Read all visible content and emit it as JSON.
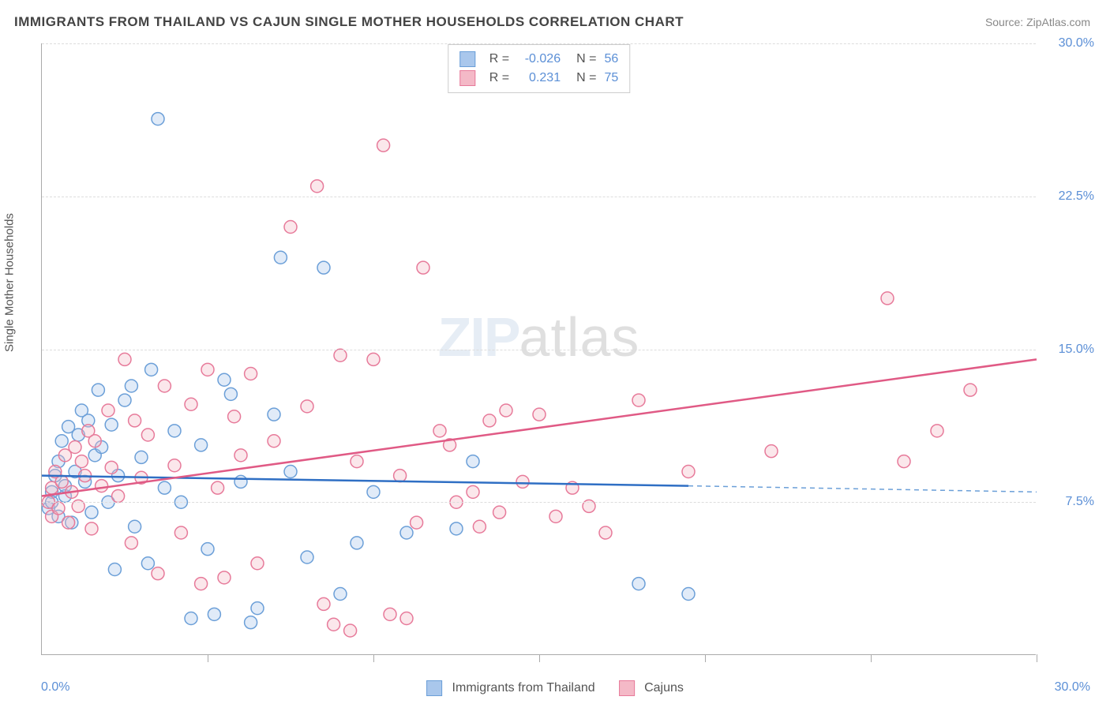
{
  "title": "IMMIGRANTS FROM THAILAND VS CAJUN SINGLE MOTHER HOUSEHOLDS CORRELATION CHART",
  "source_label": "Source: ZipAtlas.com",
  "y_axis_label": "Single Mother Households",
  "watermark": {
    "bold": "ZIP",
    "light": "atlas"
  },
  "chart": {
    "type": "scatter",
    "xlim": [
      0,
      30
    ],
    "ylim": [
      0,
      30
    ],
    "x_min_label": "0.0%",
    "x_max_label": "30.0%",
    "y_ticks": [
      7.5,
      15.0,
      22.5,
      30.0
    ],
    "y_tick_labels": [
      "7.5%",
      "15.0%",
      "22.5%",
      "30.0%"
    ],
    "x_ticks": [
      5,
      10,
      15,
      20,
      25,
      30
    ],
    "background_color": "#ffffff",
    "grid_color": "#dddddd",
    "axis_color": "#aaaaaa",
    "tick_label_color": "#5b8fd6",
    "marker_radius": 8,
    "marker_stroke_width": 1.5,
    "marker_fill_opacity": 0.35,
    "series": [
      {
        "name": "Immigrants from Thailand",
        "color_fill": "#a9c7ec",
        "color_stroke": "#6b9fd8",
        "r_value": "-0.026",
        "n_value": "56",
        "trend": {
          "solid": {
            "x1": 0,
            "y1": 8.8,
            "x2": 19.5,
            "y2": 8.3,
            "color": "#2f6fc4",
            "width": 2.5
          },
          "dashed": {
            "x1": 19.5,
            "y1": 8.3,
            "x2": 30,
            "y2": 8.0,
            "color": "#6b9fd8",
            "width": 1.5
          }
        },
        "points": [
          [
            0.2,
            7.2
          ],
          [
            0.3,
            8.0
          ],
          [
            0.3,
            7.5
          ],
          [
            0.4,
            8.8
          ],
          [
            0.5,
            6.8
          ],
          [
            0.5,
            9.5
          ],
          [
            0.6,
            10.5
          ],
          [
            0.7,
            7.8
          ],
          [
            0.7,
            8.3
          ],
          [
            0.8,
            11.2
          ],
          [
            0.9,
            6.5
          ],
          [
            1.0,
            9.0
          ],
          [
            1.1,
            10.8
          ],
          [
            1.2,
            12.0
          ],
          [
            1.3,
            8.5
          ],
          [
            1.4,
            11.5
          ],
          [
            1.5,
            7.0
          ],
          [
            1.6,
            9.8
          ],
          [
            1.7,
            13.0
          ],
          [
            1.8,
            10.2
          ],
          [
            2.0,
            7.5
          ],
          [
            2.1,
            11.3
          ],
          [
            2.2,
            4.2
          ],
          [
            2.3,
            8.8
          ],
          [
            2.5,
            12.5
          ],
          [
            2.7,
            13.2
          ],
          [
            2.8,
            6.3
          ],
          [
            3.0,
            9.7
          ],
          [
            3.2,
            4.5
          ],
          [
            3.3,
            14.0
          ],
          [
            3.5,
            26.3
          ],
          [
            3.7,
            8.2
          ],
          [
            4.0,
            11.0
          ],
          [
            4.2,
            7.5
          ],
          [
            4.5,
            1.8
          ],
          [
            4.8,
            10.3
          ],
          [
            5.0,
            5.2
          ],
          [
            5.2,
            2.0
          ],
          [
            5.5,
            13.5
          ],
          [
            5.7,
            12.8
          ],
          [
            6.0,
            8.5
          ],
          [
            6.3,
            1.6
          ],
          [
            6.5,
            2.3
          ],
          [
            7.0,
            11.8
          ],
          [
            7.2,
            19.5
          ],
          [
            7.5,
            9.0
          ],
          [
            8.0,
            4.8
          ],
          [
            8.5,
            19.0
          ],
          [
            9.0,
            3.0
          ],
          [
            9.5,
            5.5
          ],
          [
            10.0,
            8.0
          ],
          [
            11.0,
            6.0
          ],
          [
            12.5,
            6.2
          ],
          [
            13.0,
            9.5
          ],
          [
            18.0,
            3.5
          ],
          [
            19.5,
            3.0
          ]
        ]
      },
      {
        "name": "Cajuns",
        "color_fill": "#f4b9c7",
        "color_stroke": "#e77a9a",
        "r_value": "0.231",
        "n_value": "75",
        "trend": {
          "solid": {
            "x1": 0,
            "y1": 7.8,
            "x2": 30,
            "y2": 14.5,
            "color": "#e05a85",
            "width": 2.5
          }
        },
        "points": [
          [
            0.2,
            7.5
          ],
          [
            0.3,
            8.2
          ],
          [
            0.3,
            6.8
          ],
          [
            0.4,
            9.0
          ],
          [
            0.5,
            7.2
          ],
          [
            0.6,
            8.5
          ],
          [
            0.7,
            9.8
          ],
          [
            0.8,
            6.5
          ],
          [
            0.9,
            8.0
          ],
          [
            1.0,
            10.2
          ],
          [
            1.1,
            7.3
          ],
          [
            1.2,
            9.5
          ],
          [
            1.3,
            8.8
          ],
          [
            1.4,
            11.0
          ],
          [
            1.5,
            6.2
          ],
          [
            1.6,
            10.5
          ],
          [
            1.8,
            8.3
          ],
          [
            2.0,
            12.0
          ],
          [
            2.1,
            9.2
          ],
          [
            2.3,
            7.8
          ],
          [
            2.5,
            14.5
          ],
          [
            2.7,
            5.5
          ],
          [
            2.8,
            11.5
          ],
          [
            3.0,
            8.7
          ],
          [
            3.2,
            10.8
          ],
          [
            3.5,
            4.0
          ],
          [
            3.7,
            13.2
          ],
          [
            4.0,
            9.3
          ],
          [
            4.2,
            6.0
          ],
          [
            4.5,
            12.3
          ],
          [
            4.8,
            3.5
          ],
          [
            5.0,
            14.0
          ],
          [
            5.3,
            8.2
          ],
          [
            5.5,
            3.8
          ],
          [
            5.8,
            11.7
          ],
          [
            6.0,
            9.8
          ],
          [
            6.3,
            13.8
          ],
          [
            6.5,
            4.5
          ],
          [
            7.0,
            10.5
          ],
          [
            7.5,
            21.0
          ],
          [
            8.0,
            12.2
          ],
          [
            8.3,
            23.0
          ],
          [
            8.5,
            2.5
          ],
          [
            8.8,
            1.5
          ],
          [
            9.0,
            14.7
          ],
          [
            9.3,
            1.2
          ],
          [
            9.5,
            9.5
          ],
          [
            10.0,
            14.5
          ],
          [
            10.3,
            25.0
          ],
          [
            10.5,
            2.0
          ],
          [
            10.8,
            8.8
          ],
          [
            11.0,
            1.8
          ],
          [
            11.3,
            6.5
          ],
          [
            11.5,
            19.0
          ],
          [
            12.0,
            11.0
          ],
          [
            12.3,
            10.3
          ],
          [
            12.5,
            7.5
          ],
          [
            13.0,
            8.0
          ],
          [
            13.2,
            6.3
          ],
          [
            13.5,
            11.5
          ],
          [
            13.8,
            7.0
          ],
          [
            14.0,
            12.0
          ],
          [
            14.5,
            8.5
          ],
          [
            15.0,
            11.8
          ],
          [
            15.5,
            6.8
          ],
          [
            16.0,
            8.2
          ],
          [
            16.5,
            7.3
          ],
          [
            17.0,
            6.0
          ],
          [
            18.0,
            12.5
          ],
          [
            19.5,
            9.0
          ],
          [
            22.0,
            10.0
          ],
          [
            25.5,
            17.5
          ],
          [
            26.0,
            9.5
          ],
          [
            27.0,
            11.0
          ],
          [
            28.0,
            13.0
          ]
        ]
      }
    ]
  },
  "bottom_legend": {
    "items": [
      {
        "label": "Immigrants from Thailand",
        "fill": "#a9c7ec",
        "stroke": "#6b9fd8"
      },
      {
        "label": "Cajuns",
        "fill": "#f4b9c7",
        "stroke": "#e77a9a"
      }
    ]
  }
}
